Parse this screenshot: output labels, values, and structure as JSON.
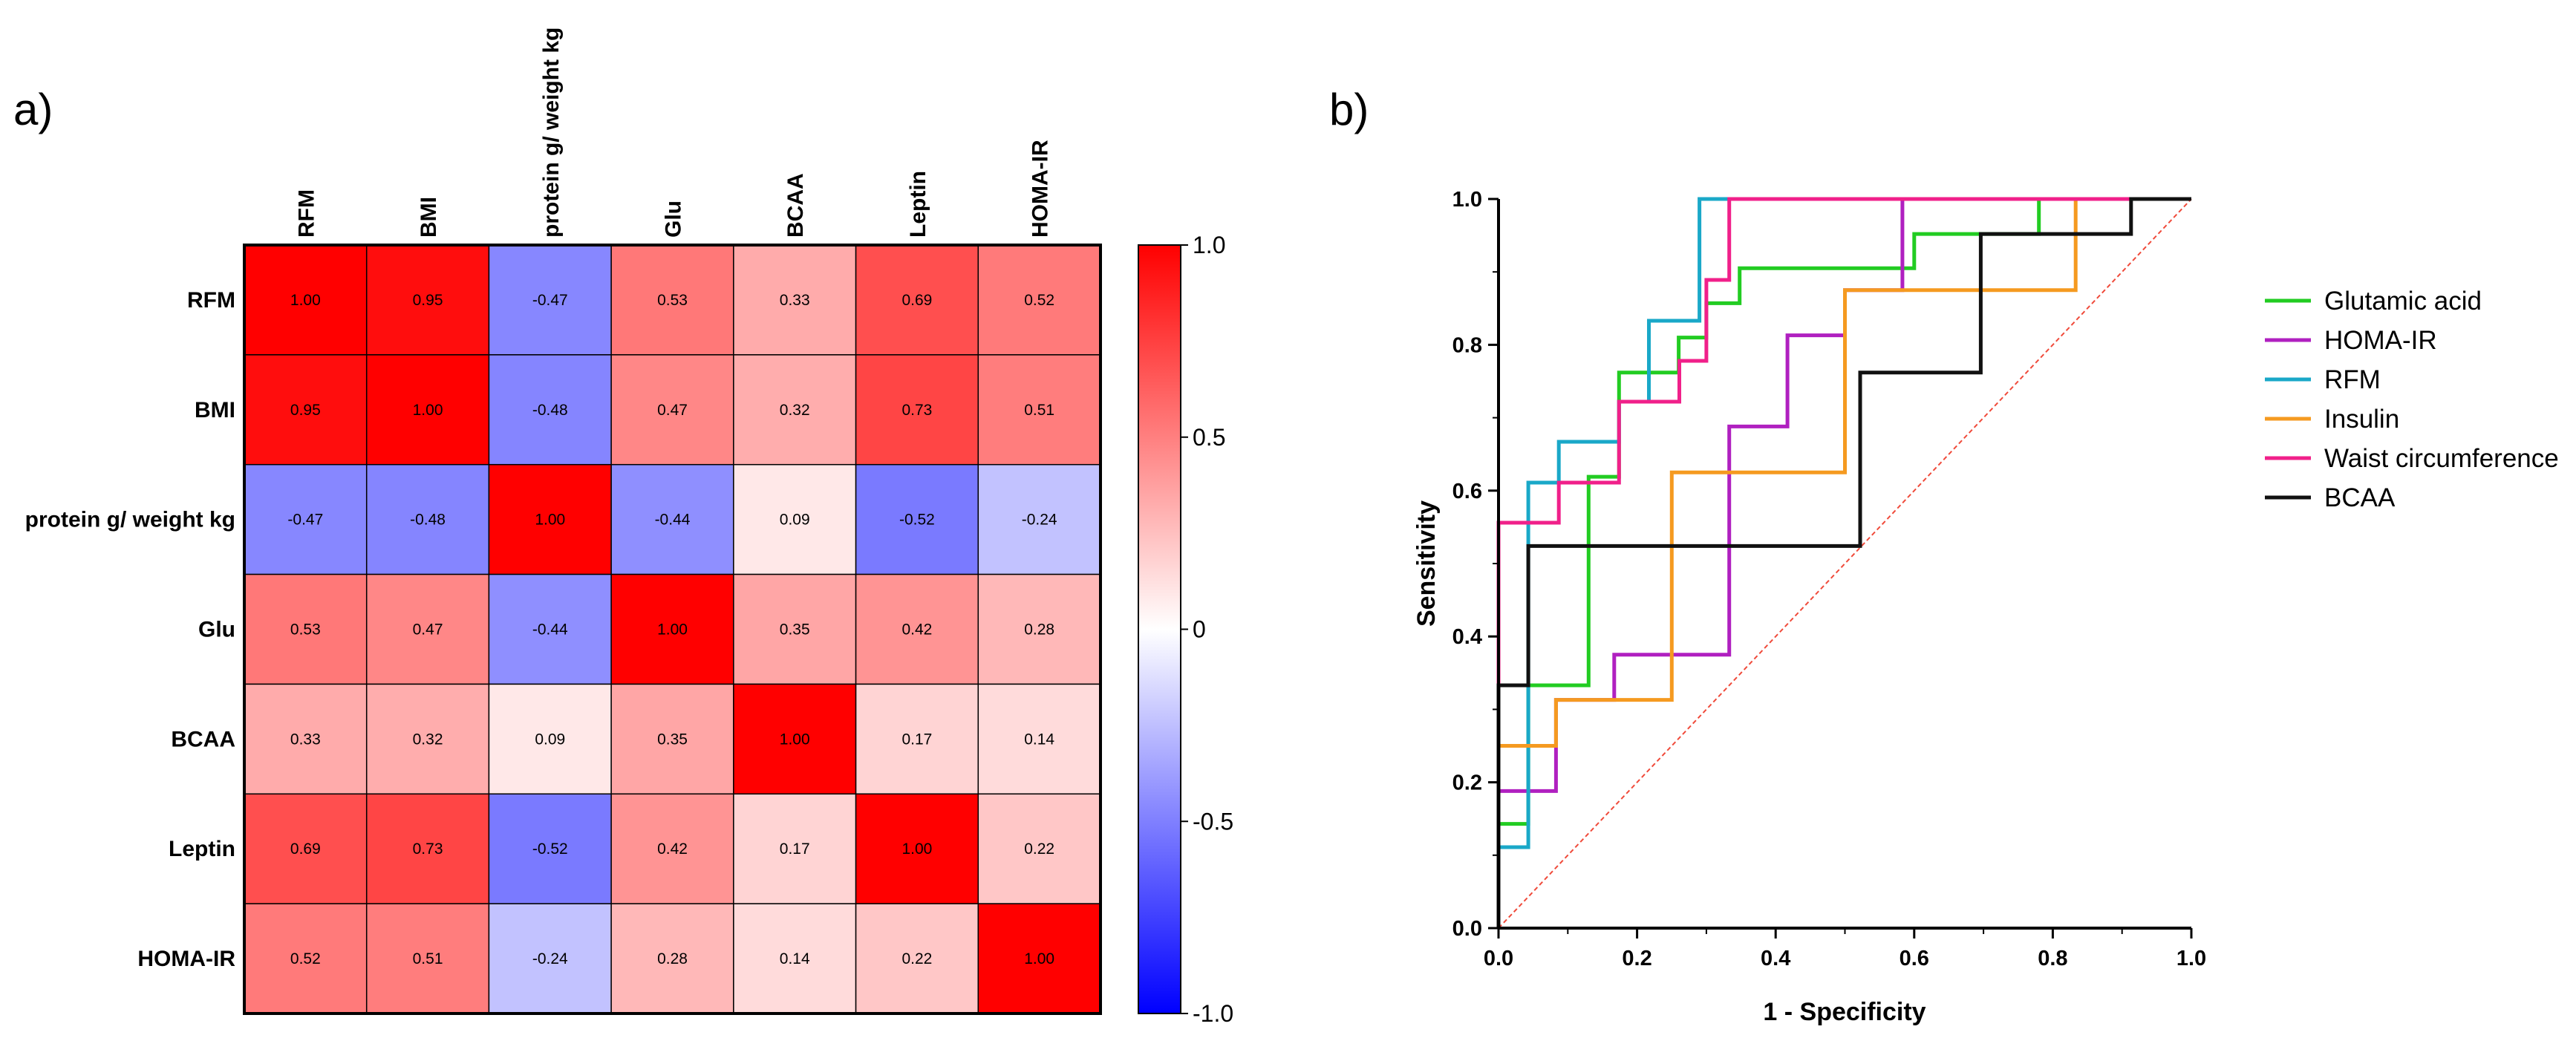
{
  "chart_data": [
    {
      "type": "heatmap",
      "panel_label": "a)",
      "row_labels": [
        "RFM",
        "BMI",
        "protein g/ weight kg",
        "Glu",
        "BCAA",
        "Leptin",
        "HOMA-IR"
      ],
      "column_labels": [
        "RFM",
        "BMI",
        "protein g/ weight kg",
        "Glu",
        "BCAA",
        "Leptin",
        "HOMA-IR"
      ],
      "values": [
        [
          1.0,
          0.95,
          -0.47,
          0.53,
          0.33,
          0.69,
          0.52
        ],
        [
          0.95,
          1.0,
          -0.48,
          0.47,
          0.32,
          0.73,
          0.51
        ],
        [
          -0.47,
          -0.48,
          1.0,
          -0.44,
          0.09,
          -0.52,
          -0.24
        ],
        [
          0.53,
          0.47,
          -0.44,
          1.0,
          0.35,
          0.42,
          0.28
        ],
        [
          0.33,
          0.32,
          0.09,
          0.35,
          1.0,
          0.17,
          0.14
        ],
        [
          0.69,
          0.73,
          -0.52,
          0.42,
          0.17,
          1.0,
          0.22
        ],
        [
          0.52,
          0.51,
          -0.24,
          0.28,
          0.14,
          0.22,
          1.0
        ]
      ],
      "value_labels": [
        [
          "1.00",
          "0.95",
          "-0.47",
          "0.53",
          "0.33",
          "0.69",
          "0.52"
        ],
        [
          "0.95",
          "1.00",
          "-0.48",
          "0.47",
          "0.32",
          "0.73",
          "0.51"
        ],
        [
          "-0.47",
          "-0.48",
          "1.00",
          "-0.44",
          "0.09",
          "-0.52",
          "-0.24"
        ],
        [
          "0.53",
          "0.47",
          "-0.44",
          "1.00",
          "0.35",
          "0.42",
          "0.28"
        ],
        [
          "0.33",
          "0.32",
          "0.09",
          "0.35",
          "1.00",
          "0.17",
          "0.14"
        ],
        [
          "0.69",
          "0.73",
          "-0.52",
          "0.42",
          "0.17",
          "1.00",
          "0.22"
        ],
        [
          "0.52",
          "0.51",
          "-0.24",
          "0.28",
          "0.14",
          "0.22",
          "1.00"
        ]
      ],
      "colorbar": {
        "range": [
          -1.0,
          1.0
        ],
        "ticks": [
          1.0,
          0.5,
          0,
          -0.5,
          -1.0
        ],
        "tick_labels": [
          "1.0",
          "0.5",
          "0",
          "-0.5",
          "-1.0"
        ],
        "colors": {
          "negative": "#0000ff",
          "zero": "#ffffff",
          "positive": "#ff0000"
        }
      }
    },
    {
      "type": "line",
      "panel_label": "b)",
      "xlabel": "1 - Specificity",
      "ylabel": "Sensitivity",
      "xlim": [
        0,
        1.0
      ],
      "ylim": [
        0,
        1.0
      ],
      "x_ticks": [
        0,
        0.2,
        0.4,
        0.6,
        0.8,
        1.0
      ],
      "x_tick_labels": [
        "0.0",
        "0.2",
        "0.4",
        "0.6",
        "0.8",
        "1.0"
      ],
      "y_ticks": [
        0,
        0.2,
        0.4,
        0.6,
        0.8,
        1.0
      ],
      "y_tick_labels": [
        "0.0",
        "0.2",
        "0.4",
        "0.6",
        "0.8",
        "1.0"
      ],
      "legend_position": "right",
      "reference_line": {
        "x": [
          0,
          1
        ],
        "y": [
          0,
          1
        ],
        "color": "#f04a3a",
        "style": "dashed"
      },
      "series": [
        {
          "name": "Glutamic acid",
          "color": "#22cc22",
          "x": [
            0,
            0,
            0.043,
            0.043,
            0.087,
            0.13,
            0.13,
            0.174,
            0.174,
            0.26,
            0.26,
            0.3,
            0.3,
            0.348,
            0.348,
            0.5,
            0.6,
            0.6,
            0.78,
            0.78,
            1.0
          ],
          "y": [
            0,
            0.143,
            0.143,
            0.333,
            0.333,
            0.333,
            0.619,
            0.619,
            0.762,
            0.762,
            0.81,
            0.81,
            0.857,
            0.857,
            0.905,
            0.905,
            0.905,
            0.952,
            0.952,
            1.0,
            1.0
          ]
        },
        {
          "name": "HOMA-IR",
          "color": "#b020c0",
          "x": [
            0,
            0,
            0.02,
            0.02,
            0.083,
            0.083,
            0.167,
            0.167,
            0.333,
            0.333,
            0.417,
            0.417,
            0.5,
            0.5,
            0.583,
            0.583,
            1.0
          ],
          "y": [
            0,
            0.188,
            0.188,
            0.188,
            0.188,
            0.313,
            0.313,
            0.375,
            0.375,
            0.688,
            0.688,
            0.813,
            0.813,
            0.875,
            0.875,
            1.0,
            1.0
          ]
        },
        {
          "name": "RFM",
          "color": "#1aa8c8",
          "x": [
            0,
            0,
            0.043,
            0.043,
            0.087,
            0.087,
            0.174,
            0.174,
            0.217,
            0.217,
            0.29,
            0.29,
            1.0
          ],
          "y": [
            0,
            0.111,
            0.111,
            0.611,
            0.611,
            0.667,
            0.667,
            0.722,
            0.722,
            0.833,
            0.833,
            1.0,
            1.0
          ]
        },
        {
          "name": "Insulin",
          "color": "#f59a20",
          "x": [
            0,
            0,
            0.083,
            0.083,
            0.25,
            0.25,
            0.5,
            0.5,
            0.75,
            0.75,
            0.833,
            0.833,
            1.0
          ],
          "y": [
            0,
            0.25,
            0.25,
            0.313,
            0.313,
            0.625,
            0.625,
            0.875,
            0.875,
            0.875,
            0.875,
            1.0,
            1.0
          ]
        },
        {
          "name": "Waist circumference",
          "color": "#f0208a",
          "x": [
            0,
            0,
            0.043,
            0.043,
            0.087,
            0.087,
            0.174,
            0.174,
            0.217,
            0.217,
            0.261,
            0.261,
            0.3,
            0.3,
            0.333,
            0.333,
            1.0
          ],
          "y": [
            0,
            0.556,
            0.556,
            0.556,
            0.556,
            0.611,
            0.611,
            0.722,
            0.722,
            0.722,
            0.722,
            0.778,
            0.778,
            0.889,
            0.889,
            1.0,
            1.0
          ]
        },
        {
          "name": "BCAA",
          "color": "#111111",
          "x": [
            0,
            0,
            0.043,
            0.043,
            0.522,
            0.522,
            0.696,
            0.696,
            0.913,
            0.913,
            1.0
          ],
          "y": [
            0,
            0.333,
            0.333,
            0.524,
            0.524,
            0.762,
            0.762,
            0.952,
            0.952,
            1.0,
            1.0
          ]
        }
      ]
    }
  ]
}
